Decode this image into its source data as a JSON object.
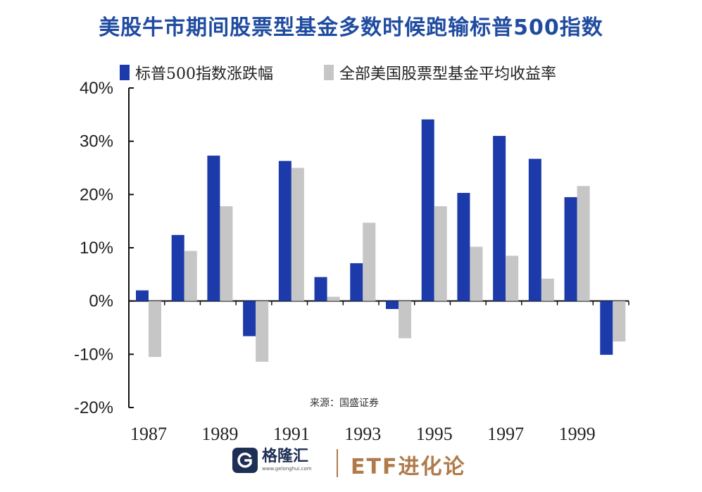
{
  "colors": {
    "sp500": "#1c3aa9",
    "funds": "#c6c6c6",
    "axis": "#111111",
    "title": "#1f4ba0",
    "etf": "#b07a4a",
    "logo": "#1e2f55"
  },
  "chart_data": {
    "type": "bar",
    "title": "美股牛市期间股票型基金多数时候跑输标普500指数",
    "categories": [
      "1987",
      "1988",
      "1989",
      "1990",
      "1991",
      "1992",
      "1993",
      "1994",
      "1995",
      "1996",
      "1997",
      "1998",
      "1999",
      "2000"
    ],
    "x_tick_labels": [
      "1987",
      "1989",
      "1991",
      "1993",
      "1995",
      "1997",
      "1999"
    ],
    "series": [
      {
        "name": "标普500指数涨跌幅",
        "values": [
          2.0,
          12.4,
          27.3,
          -6.6,
          26.3,
          4.5,
          7.1,
          -1.5,
          34.1,
          20.3,
          31.0,
          26.7,
          19.5,
          -10.1
        ]
      },
      {
        "name": "全部美国股票型基金平均收益率",
        "values": [
          -10.5,
          9.4,
          17.8,
          -11.4,
          25.0,
          0.8,
          14.7,
          -7.0,
          17.8,
          10.2,
          8.5,
          4.2,
          21.6,
          -7.6
        ]
      }
    ],
    "ylim": [
      -20,
      40
    ],
    "yticks": [
      -20,
      -10,
      0,
      10,
      20,
      30,
      40
    ],
    "ytick_labels": [
      "-20%",
      "-10%",
      "0%",
      "10%",
      "20%",
      "30%",
      "40%"
    ],
    "xlabel": "",
    "ylabel": "",
    "legend_position": "top-left"
  },
  "source_note": "来源：国盛证券",
  "footer": {
    "brand_name": "格隆汇",
    "brand_url": "www.gelonghui.com",
    "logo_letter": "G",
    "channel_name": "ETF进化论"
  }
}
